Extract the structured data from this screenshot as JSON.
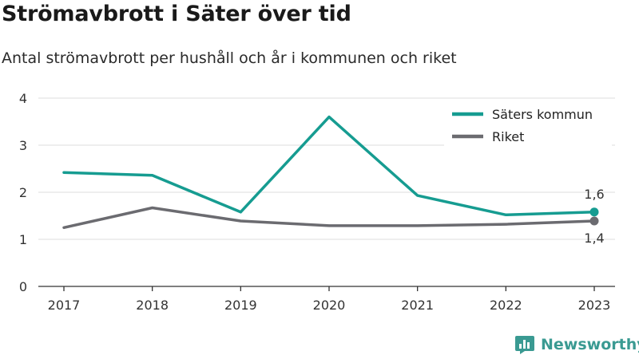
{
  "title": "Strömavbrott i Säter över tid",
  "subtitle": "Antal strömavbrott per hushåll och år i kommunen och riket",
  "brand": {
    "name": "Newsworthy",
    "icon": "newsworthy-logo-icon"
  },
  "colors": {
    "kommun": "#169c91",
    "riket": "#6b6b70",
    "grid": "#dddddd",
    "axis": "#333333"
  },
  "chart_data": {
    "type": "line",
    "title": "Strömavbrott i Säter över tid",
    "subtitle": "Antal strömavbrott per hushåll och år i kommunen och riket",
    "categories": [
      "2017",
      "2018",
      "2019",
      "2020",
      "2021",
      "2022",
      "2023"
    ],
    "ylim": [
      0,
      4
    ],
    "yticks": [
      0,
      1,
      2,
      3,
      4
    ],
    "ytick_labels": [
      "0",
      "1",
      "2",
      "3",
      "4"
    ],
    "grid": true,
    "legend_position": "top-right",
    "series": [
      {
        "name": "Säters kommun",
        "values": [
          2.42,
          2.36,
          1.58,
          3.6,
          1.93,
          1.52,
          1.58
        ],
        "end_label": "1,6"
      },
      {
        "name": "Riket",
        "values": [
          1.25,
          1.67,
          1.39,
          1.29,
          1.29,
          1.32,
          1.39
        ],
        "end_label": "1,4"
      }
    ]
  }
}
